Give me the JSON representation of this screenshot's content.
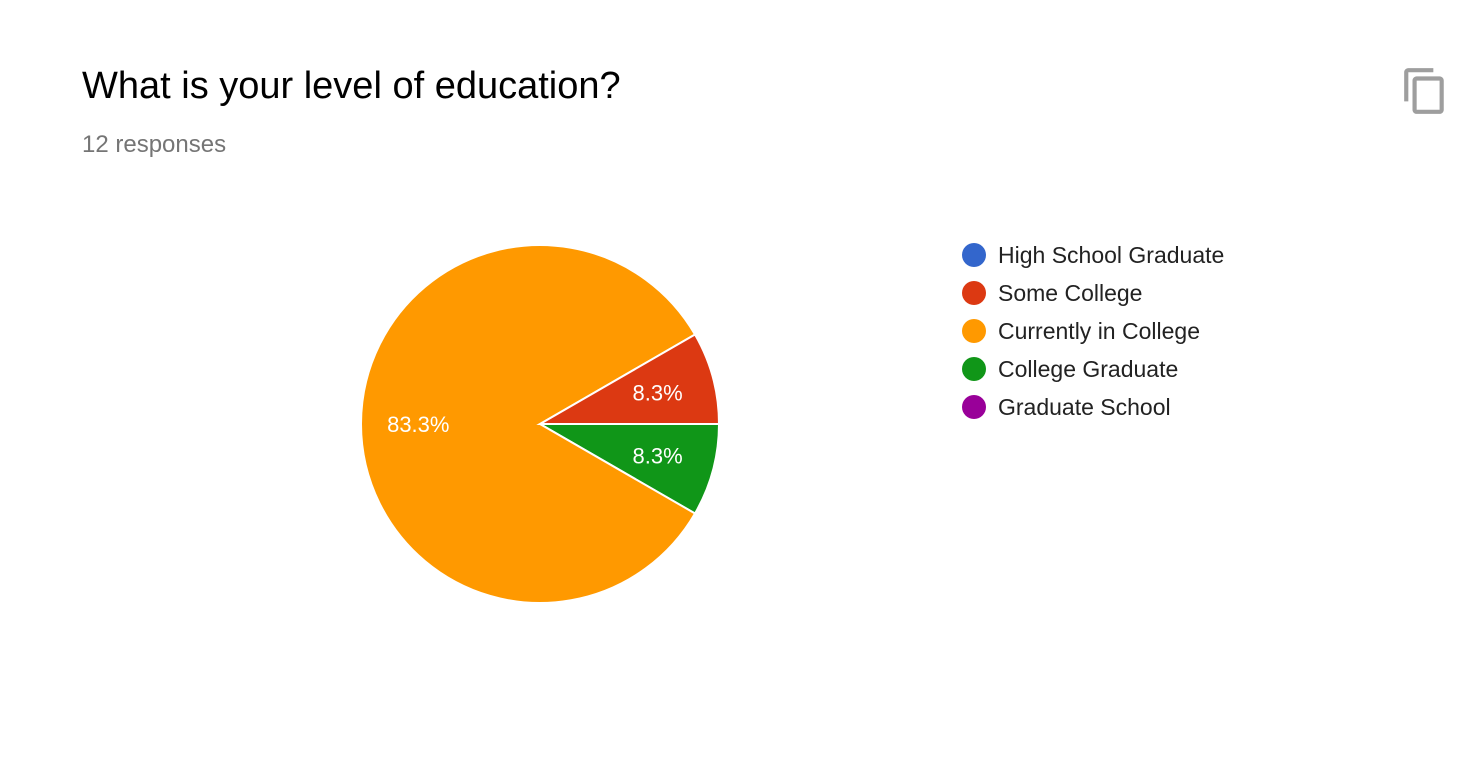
{
  "header": {
    "title": "What is your level of education?",
    "subtitle": "12 responses",
    "copy_icon": "copy-icon"
  },
  "chart_data": {
    "type": "pie",
    "categories": [
      "High School Graduate",
      "Some College",
      "Currently in College",
      "College Graduate",
      "Graduate School"
    ],
    "values": [
      0,
      1,
      10,
      1,
      0
    ],
    "percent_labels": [
      "0%",
      "8.3%",
      "83.3%",
      "8.3%",
      "0%"
    ],
    "colors": [
      "#3366cc",
      "#dc3912",
      "#ff9900",
      "#109618",
      "#990099"
    ],
    "legend_position": "right"
  }
}
